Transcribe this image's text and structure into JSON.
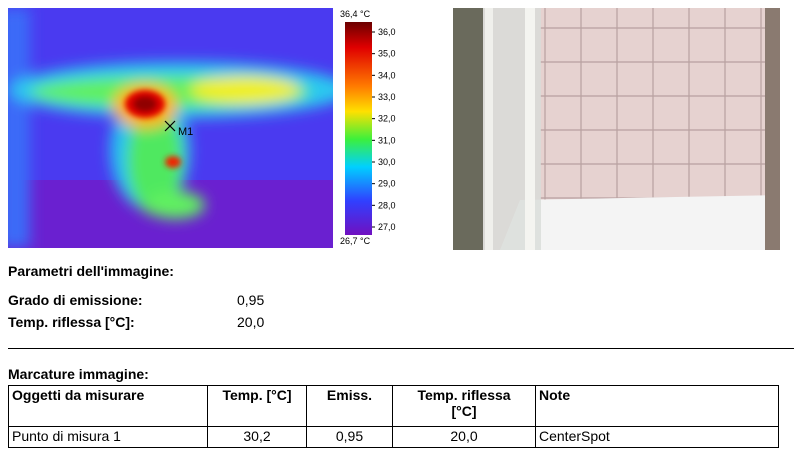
{
  "thermal_image": {
    "scale_max": "36,4 °C",
    "scale_ticks": [
      "36,0",
      "35,0",
      "34,0",
      "33,0",
      "32,0",
      "31,0",
      "30,0",
      "29,0",
      "28,0",
      "27,0"
    ],
    "scale_min": "26,7 °C",
    "marker": "M1"
  },
  "parameters": {
    "title": "Parametri dell'immagine:",
    "rows": [
      [
        "Grado di emissione:",
        "0,95"
      ],
      [
        "Temp. riflessa [°C]:",
        "20,0"
      ]
    ]
  },
  "markings": {
    "title": "Marcature immagine:",
    "table": {
      "header": [
        "Oggetti da misurare",
        "Temp. [°C]",
        "Emiss.",
        "Temp. riflessa [°C]",
        "Note"
      ],
      "rows": [
        [
          "Punto di misura 1",
          "30,2",
          "0,95",
          "20,0",
          "CenterSpot"
        ]
      ]
    }
  }
}
